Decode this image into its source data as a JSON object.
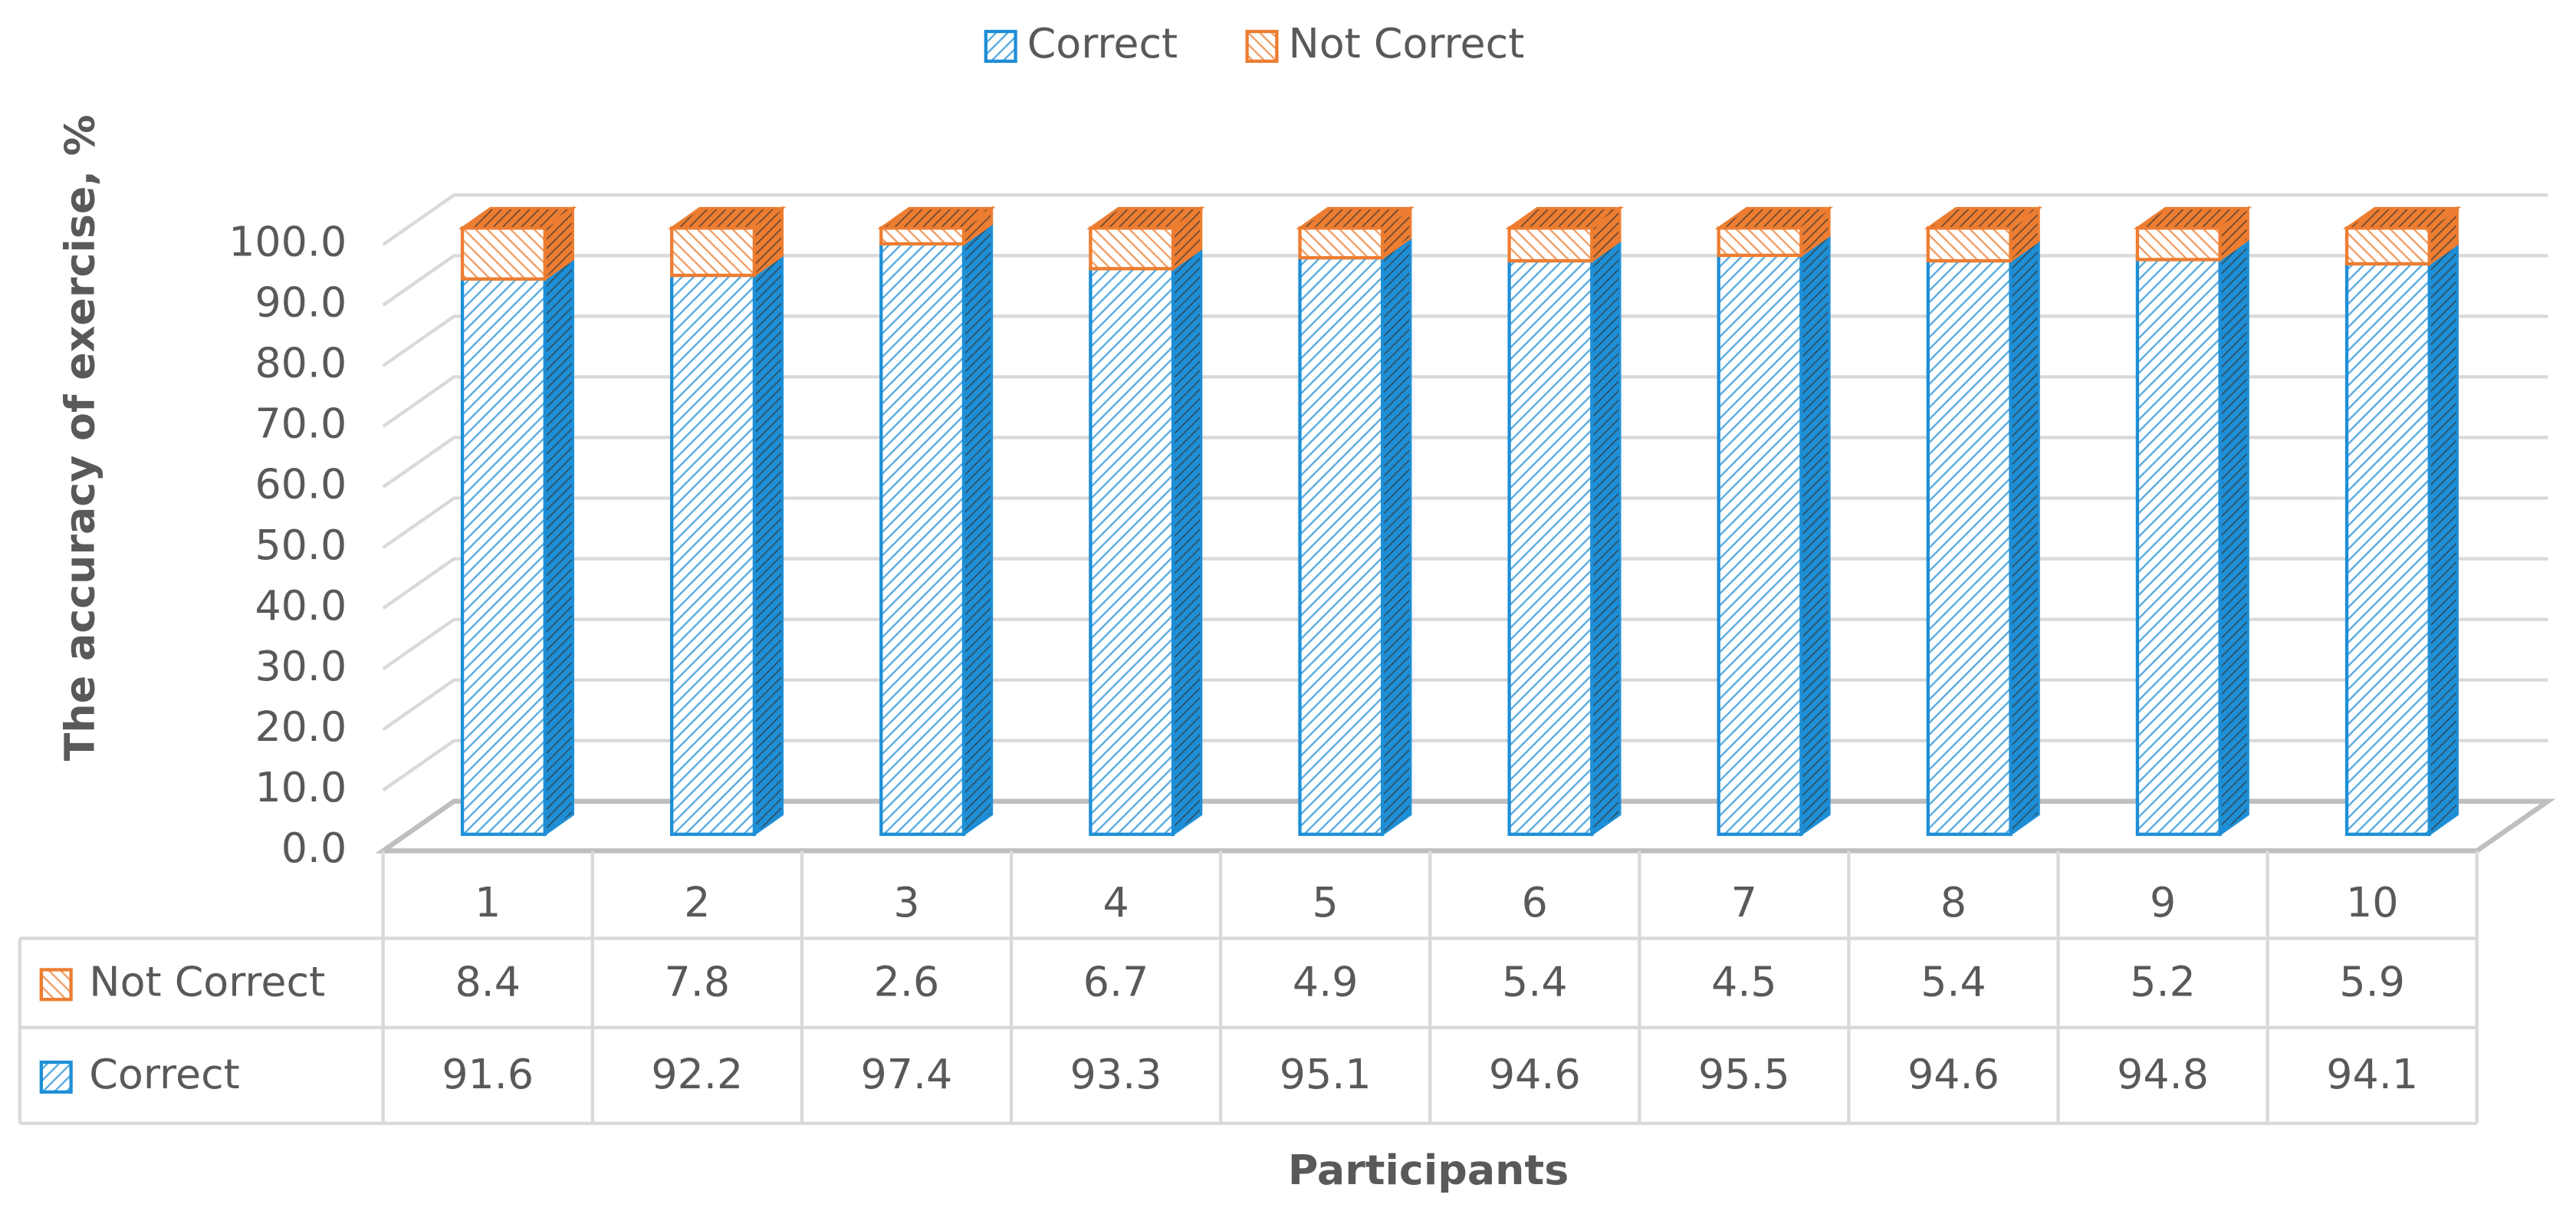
{
  "chart_data": {
    "type": "bar3d_stacked",
    "y_label": "The accuracy of exercise, %",
    "x_label": "Participants",
    "categories": [
      "1",
      "2",
      "3",
      "4",
      "5",
      "6",
      "7",
      "8",
      "9",
      "10"
    ],
    "series": [
      {
        "name": "Correct",
        "color": "#1e8fd6",
        "values": [
          91.6,
          92.2,
          97.4,
          93.3,
          95.1,
          94.6,
          95.5,
          94.6,
          94.8,
          94.1
        ]
      },
      {
        "name": "Not Correct",
        "color": "#ed7d31",
        "values": [
          8.4,
          7.8,
          2.6,
          6.7,
          4.9,
          5.4,
          4.5,
          5.4,
          5.2,
          5.9
        ]
      }
    ],
    "ylim": [
      0,
      100
    ],
    "yticks": [
      {
        "value": 0,
        "label": "0.0"
      },
      {
        "value": 10,
        "label": "10.0"
      },
      {
        "value": 20,
        "label": "20.0"
      },
      {
        "value": 30,
        "label": "30.0"
      },
      {
        "value": 40,
        "label": "40.0"
      },
      {
        "value": 50,
        "label": "50.0"
      },
      {
        "value": 60,
        "label": "60.0"
      },
      {
        "value": 70,
        "label": "70.0"
      },
      {
        "value": 80,
        "label": "80.0"
      },
      {
        "value": 90,
        "label": "90.0"
      },
      {
        "value": 100,
        "label": "100.0"
      }
    ],
    "grid": true,
    "legend": "top",
    "data_table": true
  }
}
